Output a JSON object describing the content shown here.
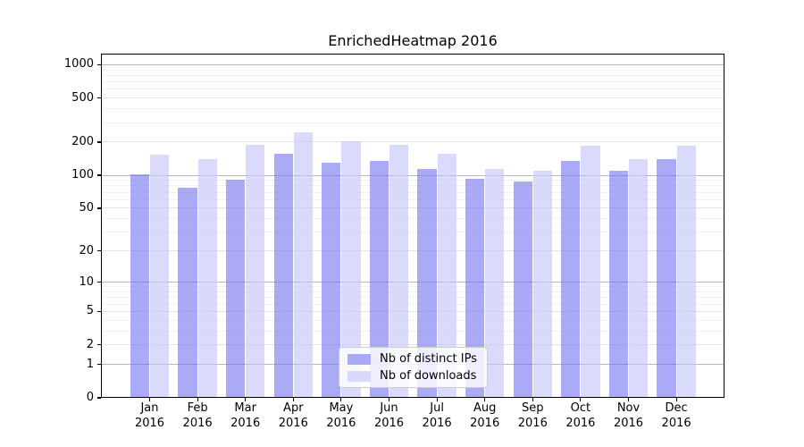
{
  "title": "EnrichedHeatmap 2016",
  "chart_data": {
    "type": "bar",
    "title": "EnrichedHeatmap 2016",
    "xlabel": "",
    "ylabel": "",
    "yscale": "log1p",
    "categories": [
      "Jan",
      "Feb",
      "Mar",
      "Apr",
      "May",
      "Jun",
      "Jul",
      "Aug",
      "Sep",
      "Oct",
      "Nov",
      "Dec"
    ],
    "year_label": "2016",
    "series": [
      {
        "name": "Nb of distinct IPs",
        "color": "#a9a9f4",
        "values": [
          103,
          77,
          91,
          158,
          130,
          134,
          114,
          93,
          88,
          135,
          109,
          139
        ]
      },
      {
        "name": "Nb of downloads",
        "color": "#d9d9fb",
        "values": [
          155,
          140,
          190,
          245,
          204,
          189,
          156,
          114,
          111,
          185,
          141,
          185
        ]
      }
    ],
    "yticks": [
      0,
      1,
      2,
      5,
      10,
      20,
      50,
      100,
      200,
      500,
      1000
    ],
    "ylim": [
      0,
      1258
    ],
    "gridlines": {
      "emphasis": [
        1,
        10,
        100,
        1000
      ],
      "labeled": [
        2,
        5,
        20,
        50,
        200,
        500
      ],
      "minor": [
        3,
        4,
        6,
        7,
        8,
        9,
        30,
        40,
        60,
        70,
        80,
        90,
        300,
        400,
        600,
        700,
        800,
        900
      ]
    },
    "legend_position": "lower center",
    "grid": true
  }
}
